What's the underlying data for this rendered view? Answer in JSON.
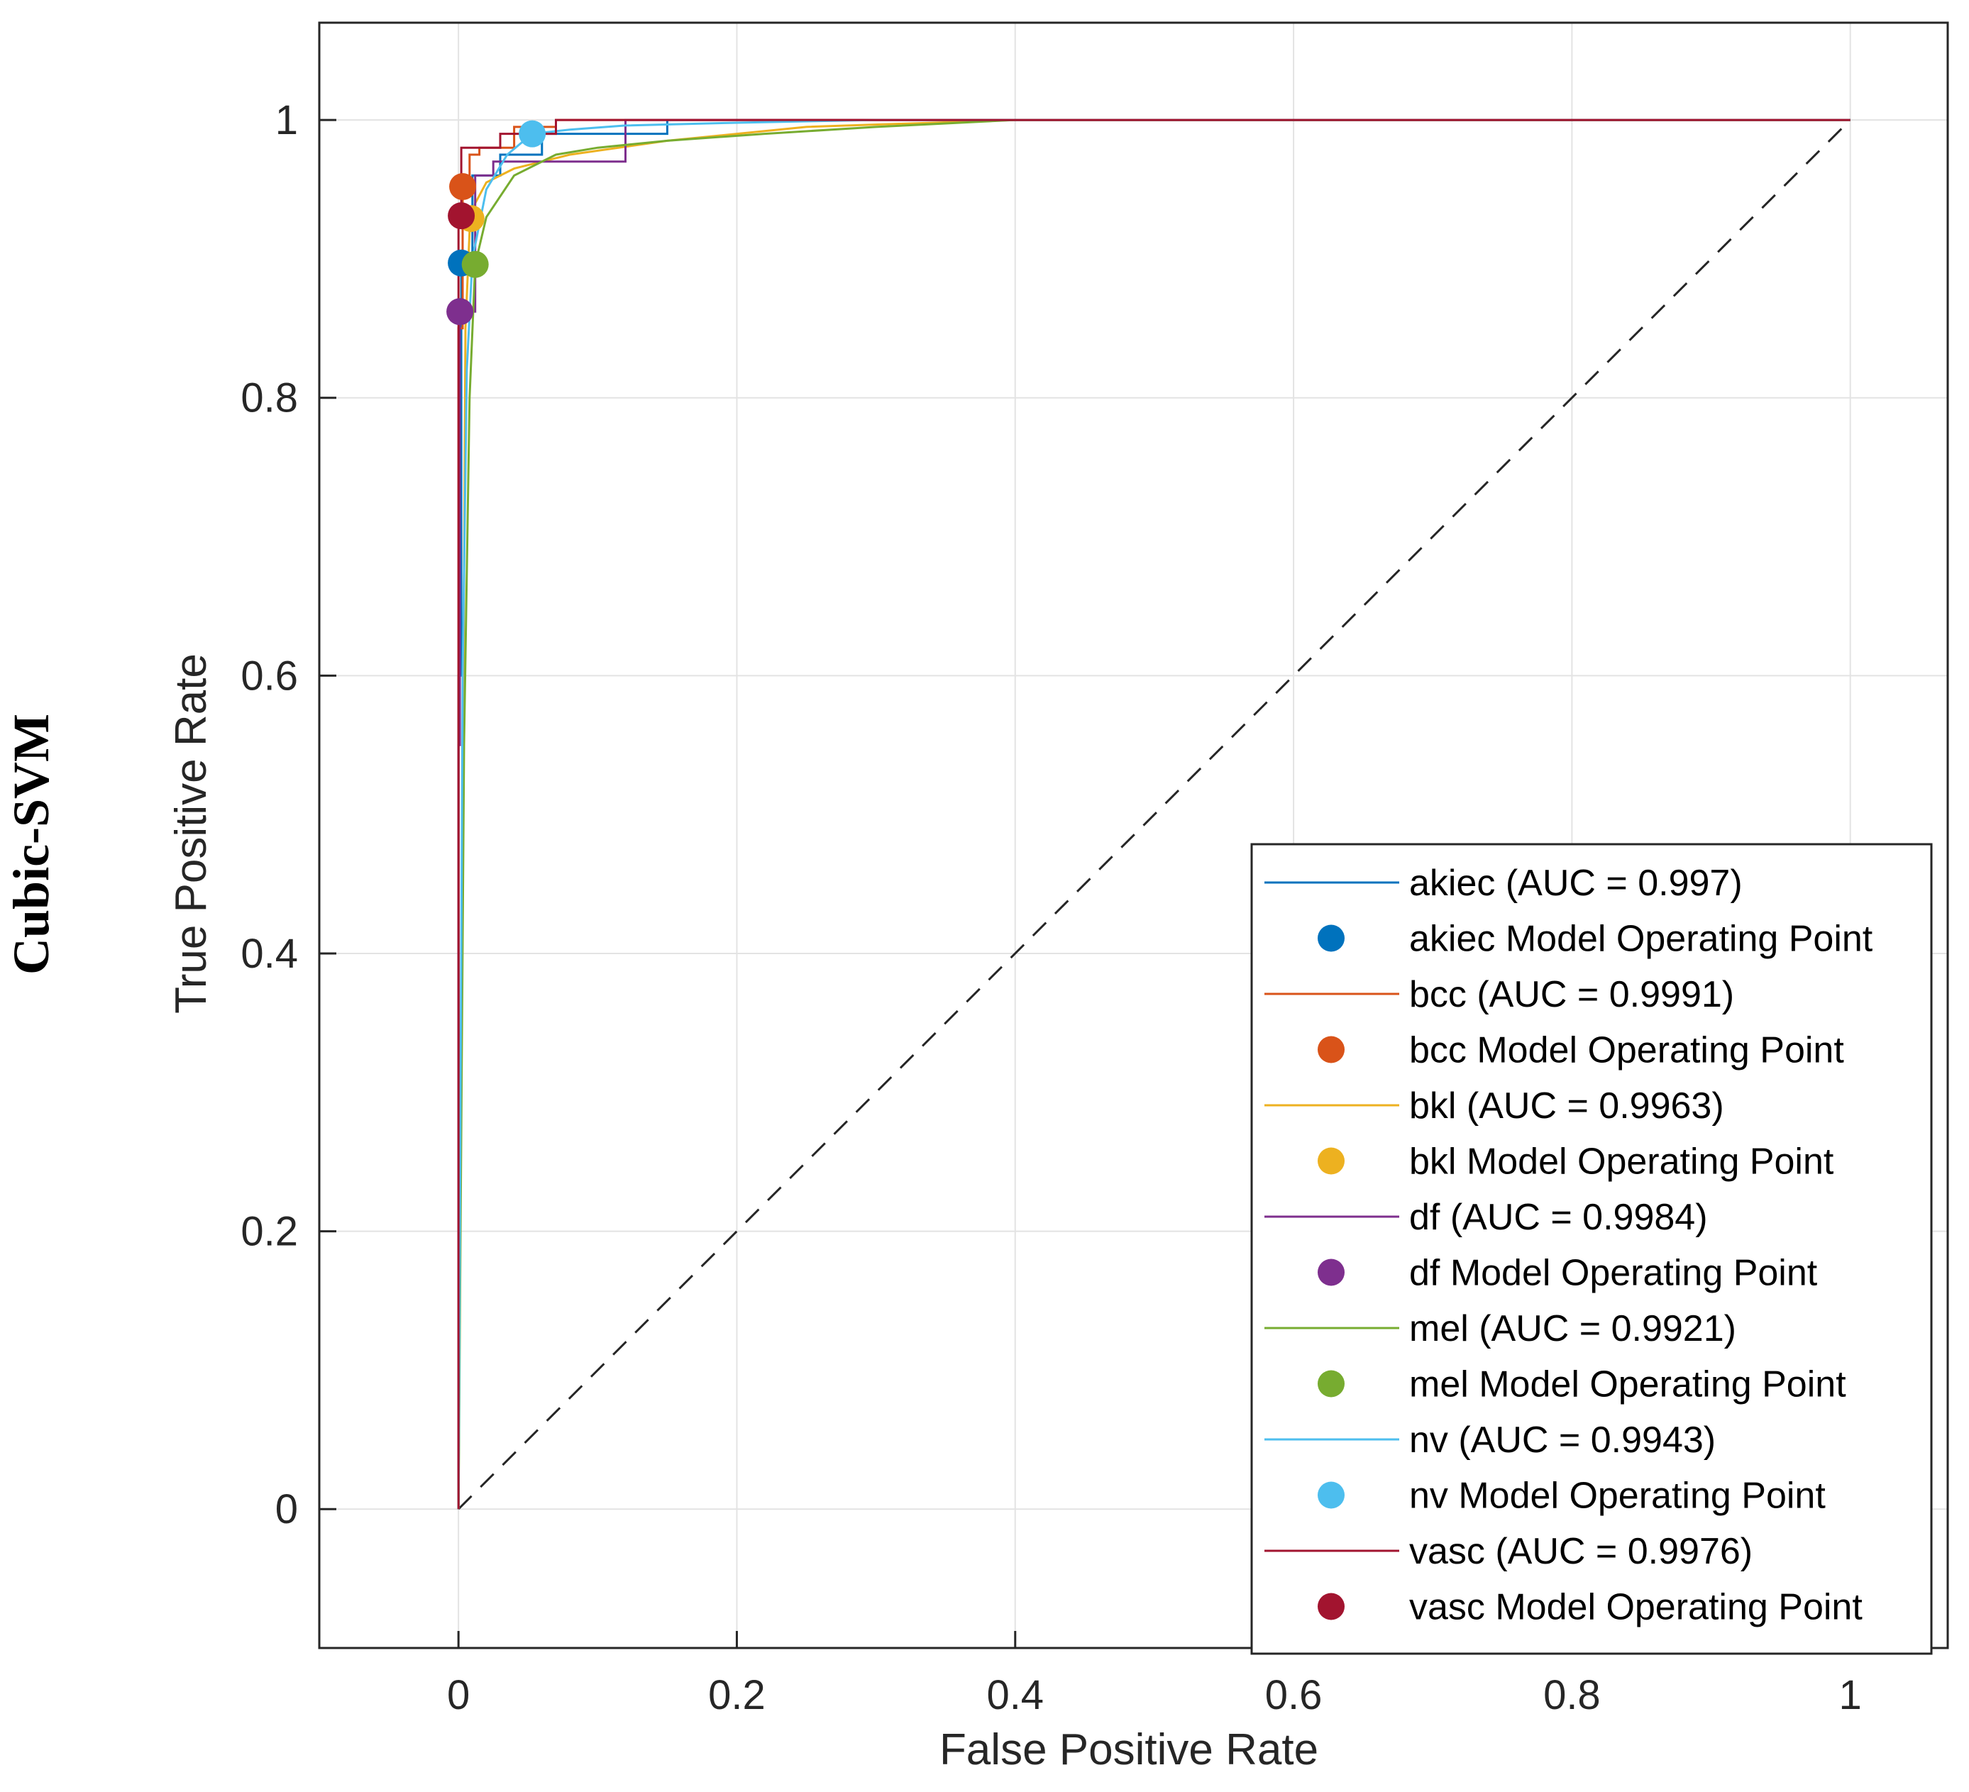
{
  "side_label": "Cubic-SVM",
  "chart_data": {
    "type": "line",
    "title": "",
    "xlabel": "False Positive Rate",
    "ylabel": "True Positive Rate",
    "xlim": [
      -0.1,
      1.07
    ],
    "ylim": [
      -0.1,
      1.07
    ],
    "x_ticks": [
      0,
      0.2,
      0.4,
      0.6,
      0.8,
      1
    ],
    "y_ticks": [
      0,
      0.2,
      0.4,
      0.6,
      0.8,
      1
    ],
    "x_tick_labels": [
      "0",
      "0.2",
      "0.4",
      "0.6",
      "0.8",
      "1"
    ],
    "y_tick_labels": [
      "0",
      "0.2",
      "0.4",
      "0.6",
      "0.8",
      "1"
    ],
    "grid": true,
    "legend_position": "bottom-right",
    "reference_line": {
      "x": [
        0,
        1
      ],
      "y": [
        0,
        1
      ],
      "style": "dashed",
      "color": "#262626"
    },
    "series": [
      {
        "name": "akiec (AUC = 0.997)",
        "color": "#0072BD",
        "x": [
          0,
          0,
          0.002,
          0.002,
          0.01,
          0.01,
          0.03,
          0.03,
          0.06,
          0.06,
          0.15,
          0.15,
          1
        ],
        "y": [
          0,
          0.6,
          0.6,
          0.9,
          0.9,
          0.96,
          0.96,
          0.975,
          0.975,
          0.99,
          0.99,
          1,
          1
        ]
      },
      {
        "name": "akiec Model Operating Point",
        "color": "#0072BD",
        "marker": true,
        "x": [
          0.002
        ],
        "y": [
          0.897
        ]
      },
      {
        "name": "bcc (AUC = 0.9991)",
        "color": "#D95319",
        "x": [
          0,
          0,
          0.003,
          0.003,
          0.008,
          0.008,
          0.015,
          0.015,
          0.04,
          0.04,
          0.07,
          0.07,
          1
        ],
        "y": [
          0,
          0.85,
          0.85,
          0.952,
          0.952,
          0.975,
          0.975,
          0.98,
          0.98,
          0.995,
          0.995,
          1,
          1
        ]
      },
      {
        "name": "bcc Model Operating Point",
        "color": "#D95319",
        "marker": true,
        "x": [
          0.003
        ],
        "y": [
          0.952
        ]
      },
      {
        "name": "bkl (AUC = 0.9963)",
        "color": "#EDB120",
        "x": [
          0,
          0.005,
          0.008,
          0.012,
          0.02,
          0.04,
          0.08,
          0.15,
          0.25,
          0.4,
          1
        ],
        "y": [
          0,
          0.85,
          0.92,
          0.94,
          0.955,
          0.965,
          0.975,
          0.985,
          0.995,
          1,
          1
        ]
      },
      {
        "name": "bkl Model Operating Point",
        "color": "#EDB120",
        "marker": true,
        "x": [
          0.009
        ],
        "y": [
          0.929
        ]
      },
      {
        "name": "df (AUC = 0.9984)",
        "color": "#7E2F8E",
        "x": [
          0,
          0,
          0.001,
          0.001,
          0.012,
          0.012,
          0.025,
          0.025,
          0.12,
          0.12,
          1
        ],
        "y": [
          0,
          0.55,
          0.55,
          0.862,
          0.862,
          0.96,
          0.96,
          0.97,
          0.97,
          1,
          1
        ]
      },
      {
        "name": "df Model Operating Point",
        "color": "#7E2F8E",
        "marker": true,
        "x": [
          0.001
        ],
        "y": [
          0.862
        ]
      },
      {
        "name": "mel (AUC = 0.9921)",
        "color": "#77AC30",
        "x": [
          0,
          0.004,
          0.008,
          0.012,
          0.02,
          0.04,
          0.07,
          0.1,
          0.15,
          0.22,
          0.3,
          0.4,
          1
        ],
        "y": [
          0,
          0.55,
          0.8,
          0.896,
          0.93,
          0.96,
          0.975,
          0.98,
          0.985,
          0.99,
          0.995,
          1,
          1
        ]
      },
      {
        "name": "mel Model Operating Point",
        "color": "#77AC30",
        "marker": true,
        "x": [
          0.012
        ],
        "y": [
          0.896
        ]
      },
      {
        "name": "nv (AUC = 0.9943)",
        "color": "#4DBEEE",
        "x": [
          0,
          0.003,
          0.006,
          0.01,
          0.02,
          0.035,
          0.053,
          0.08,
          0.12,
          0.2,
          0.3,
          1
        ],
        "y": [
          0,
          0.6,
          0.82,
          0.9,
          0.95,
          0.975,
          0.99,
          0.993,
          0.996,
          0.998,
          1,
          1
        ]
      },
      {
        "name": "nv Model Operating Point",
        "color": "#4DBEEE",
        "marker": true,
        "x": [
          0.053
        ],
        "y": [
          0.99
        ]
      },
      {
        "name": "vasc (AUC = 0.9976)",
        "color": "#A2142F",
        "x": [
          0,
          0,
          0.002,
          0.002,
          0.03,
          0.03,
          0.07,
          0.07,
          1
        ],
        "y": [
          0,
          0.93,
          0.93,
          0.98,
          0.98,
          0.99,
          0.99,
          1,
          1
        ]
      },
      {
        "name": "vasc Model Operating Point",
        "color": "#A2142F",
        "marker": true,
        "x": [
          0.002
        ],
        "y": [
          0.931
        ]
      }
    ]
  }
}
